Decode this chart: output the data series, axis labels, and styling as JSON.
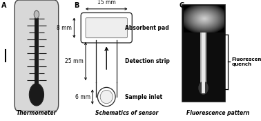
{
  "panel_A_label": "A",
  "panel_B_label": "B",
  "panel_C_label": "C",
  "caption_A": "Thermometer",
  "caption_B": "Schematics of sensor",
  "caption_C": "Fluorescence pattern",
  "dim_15mm": "15 mm",
  "dim_8mm": "8 mm",
  "dim_25mm": "25 mm",
  "dim_6mm": "6 mm",
  "label_absorbent": "Absorbent pad",
  "label_detection": "Detection strip",
  "label_inlet": "Sample inlet",
  "label_fluor": "Fluorescence\nquench",
  "bg_color": "#ffffff",
  "thermometer_body_color": "#d8d8d8",
  "thermometer_fill_color": "#1a1a1a",
  "thermometer_outline": "#444444",
  "fluor_bg": "#0d0d0d"
}
